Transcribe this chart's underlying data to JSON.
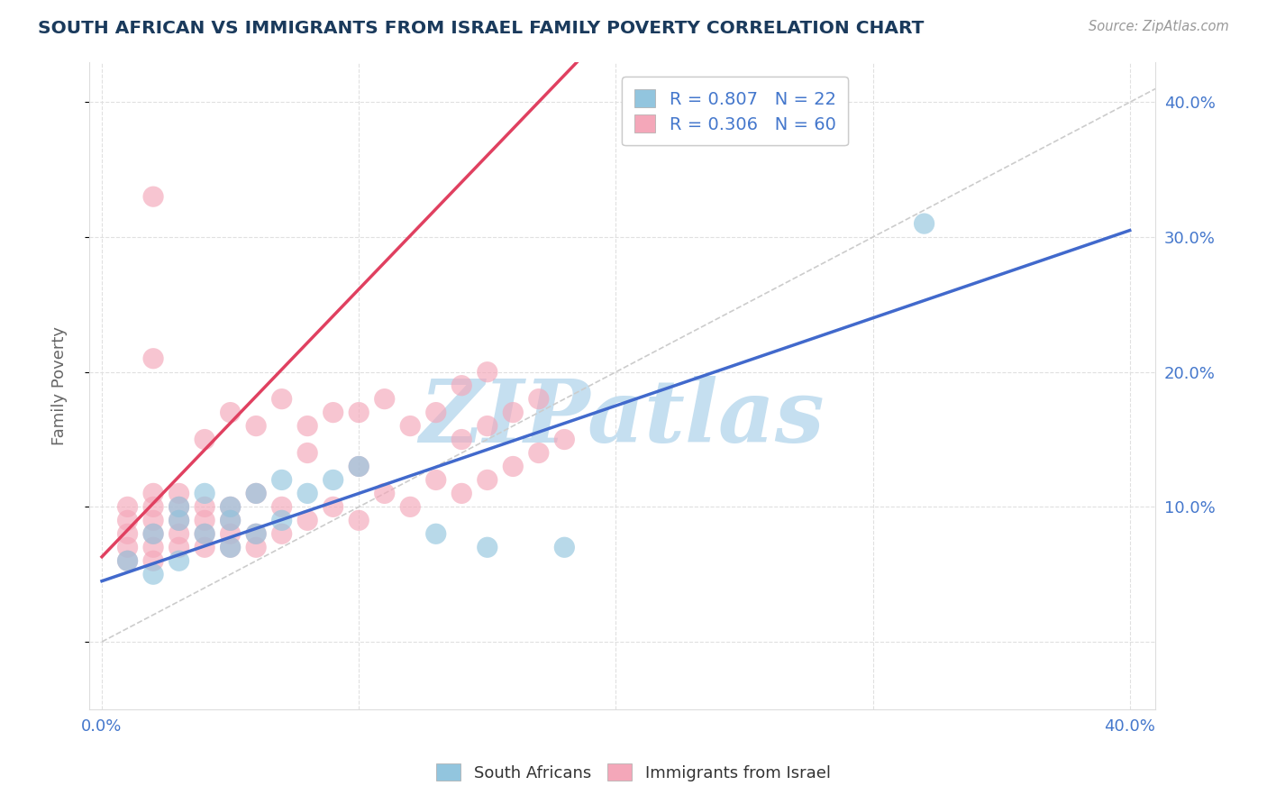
{
  "title": "SOUTH AFRICAN VS IMMIGRANTS FROM ISRAEL FAMILY POVERTY CORRELATION CHART",
  "source": "Source: ZipAtlas.com",
  "ylabel": "Family Poverty",
  "x_ticks": [
    0.0,
    0.1,
    0.2,
    0.3,
    0.4
  ],
  "x_tick_labels": [
    "0.0%",
    "",
    "",
    "",
    "40.0%"
  ],
  "y_ticks_right": [
    0.0,
    0.1,
    0.2,
    0.3,
    0.4
  ],
  "y_tick_labels_right": [
    "",
    "10.0%",
    "20.0%",
    "30.0%",
    "40.0%"
  ],
  "xlim": [
    -0.005,
    0.41
  ],
  "ylim": [
    -0.05,
    0.43
  ],
  "legend_label_blue": "R = 0.807   N = 22",
  "legend_label_pink": "R = 0.306   N = 60",
  "bottom_legend_blue": "South Africans",
  "bottom_legend_pink": "Immigrants from Israel",
  "blue_color": "#92c5de",
  "pink_color": "#f4a7b9",
  "blue_line_color": "#4169CC",
  "pink_line_color": "#E04060",
  "watermark": "ZIPatlas",
  "watermark_color": "#c5dff0",
  "blue_scatter_x": [
    0.01,
    0.02,
    0.02,
    0.03,
    0.03,
    0.03,
    0.04,
    0.04,
    0.05,
    0.05,
    0.05,
    0.06,
    0.06,
    0.07,
    0.07,
    0.08,
    0.09,
    0.1,
    0.13,
    0.15,
    0.18,
    0.32
  ],
  "blue_scatter_y": [
    0.06,
    0.05,
    0.08,
    0.06,
    0.09,
    0.1,
    0.08,
    0.11,
    0.07,
    0.09,
    0.1,
    0.08,
    0.11,
    0.09,
    0.12,
    0.11,
    0.12,
    0.13,
    0.08,
    0.07,
    0.07,
    0.31
  ],
  "pink_scatter_x": [
    0.01,
    0.01,
    0.01,
    0.01,
    0.01,
    0.02,
    0.02,
    0.02,
    0.02,
    0.02,
    0.02,
    0.02,
    0.03,
    0.03,
    0.03,
    0.03,
    0.03,
    0.04,
    0.04,
    0.04,
    0.04,
    0.04,
    0.05,
    0.05,
    0.05,
    0.05,
    0.05,
    0.06,
    0.06,
    0.06,
    0.06,
    0.07,
    0.07,
    0.07,
    0.08,
    0.08,
    0.08,
    0.09,
    0.09,
    0.1,
    0.1,
    0.1,
    0.11,
    0.11,
    0.12,
    0.12,
    0.13,
    0.13,
    0.14,
    0.14,
    0.14,
    0.15,
    0.15,
    0.15,
    0.16,
    0.16,
    0.17,
    0.17,
    0.18,
    0.02
  ],
  "pink_scatter_y": [
    0.06,
    0.07,
    0.08,
    0.09,
    0.1,
    0.06,
    0.07,
    0.08,
    0.09,
    0.1,
    0.11,
    0.33,
    0.07,
    0.08,
    0.09,
    0.1,
    0.11,
    0.07,
    0.08,
    0.09,
    0.1,
    0.15,
    0.07,
    0.08,
    0.09,
    0.1,
    0.17,
    0.07,
    0.08,
    0.11,
    0.16,
    0.08,
    0.1,
    0.18,
    0.09,
    0.14,
    0.16,
    0.1,
    0.17,
    0.09,
    0.13,
    0.17,
    0.11,
    0.18,
    0.1,
    0.16,
    0.12,
    0.17,
    0.11,
    0.15,
    0.19,
    0.12,
    0.16,
    0.2,
    0.13,
    0.17,
    0.14,
    0.18,
    0.15,
    0.21
  ],
  "blue_line_x0": 0.0,
  "blue_line_x1": 0.4,
  "blue_line_y0": 0.045,
  "blue_line_y1": 0.305,
  "pink_line_x0": 0.0,
  "pink_line_x1": 0.185,
  "pink_line_y0": 0.063,
  "pink_line_y1": 0.43,
  "diag_line_color": "#cccccc",
  "grid_color": "#e0e0e0"
}
